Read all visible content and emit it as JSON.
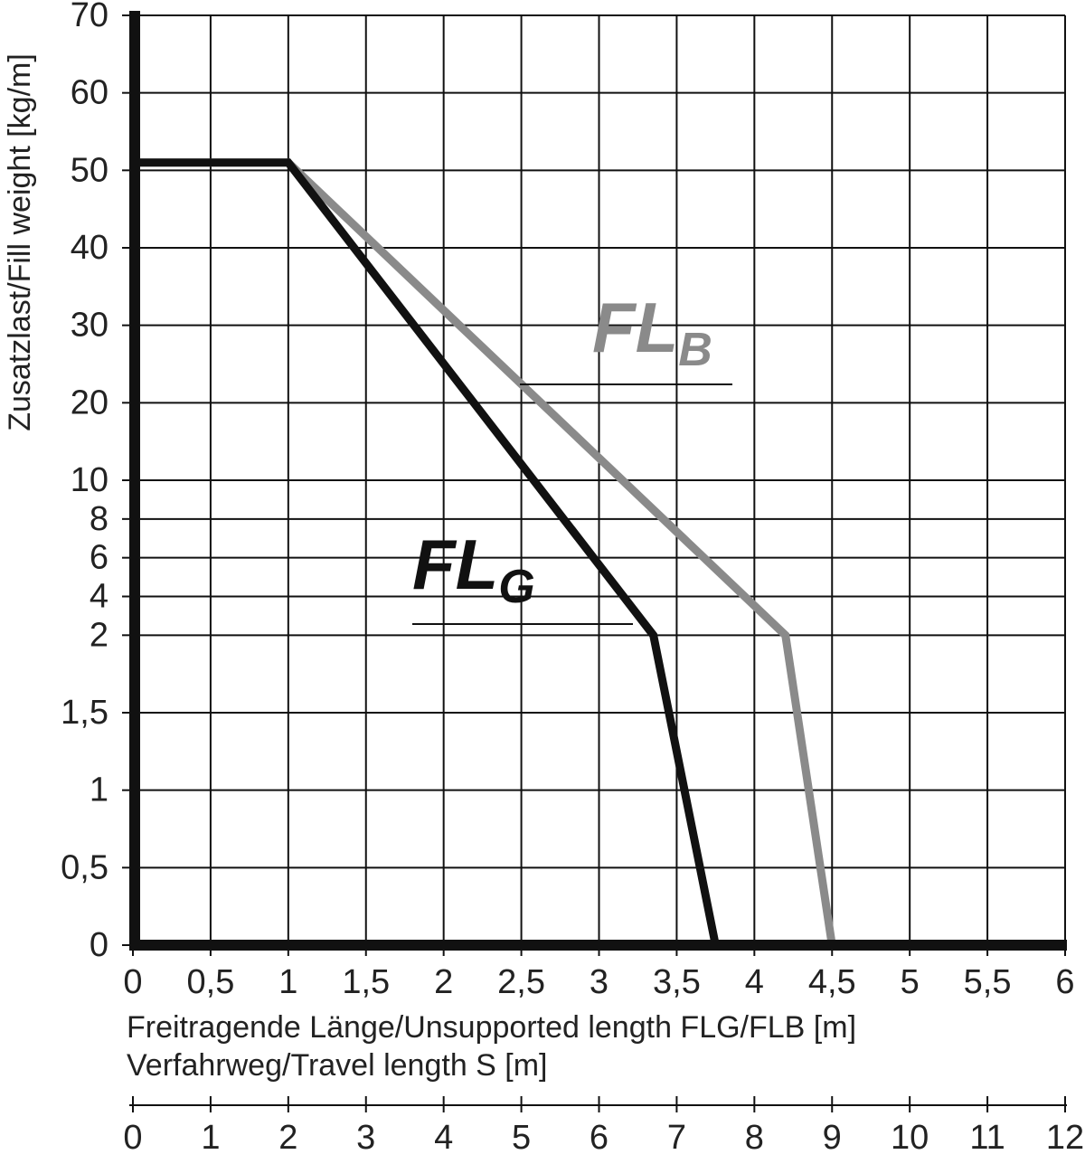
{
  "chart_data": {
    "type": "line",
    "y_label": "Zusatzlast/Fill weight [kg/m]",
    "x_label": "Freitragende Länge/Unsupported length FLG/FLB [m]",
    "x2_label": "Verfahrweg/Travel length S [m]",
    "series": [
      {
        "name": "FL",
        "subscript": "B",
        "color": "#8a8a8a",
        "x": [
          0,
          1,
          4.2,
          4.5
        ],
        "values": [
          51,
          51,
          2,
          0
        ]
      },
      {
        "name": "FL",
        "subscript": "G",
        "color": "#111111",
        "x": [
          0,
          1,
          3.35,
          3.75
        ],
        "values": [
          51,
          51,
          2,
          0
        ]
      }
    ],
    "xlim": [
      0,
      6
    ],
    "xticks": [
      0,
      {
        "value": 0.5,
        "label": "0,5"
      },
      1,
      {
        "value": 1.5,
        "label": "1,5"
      },
      2,
      {
        "value": 2.5,
        "label": "2,5"
      },
      3,
      {
        "value": 3.5,
        "label": "3,5"
      },
      4,
      {
        "value": 4.5,
        "label": "4,5"
      },
      5,
      {
        "value": 5.5,
        "label": "5,5"
      },
      6
    ],
    "x2lim": [
      0,
      12
    ],
    "x2ticks": [
      0,
      1,
      2,
      3,
      4,
      5,
      6,
      7,
      8,
      9,
      10,
      11,
      12
    ],
    "ylim": [
      0,
      70
    ],
    "y_scale": "equal-tick-spacing",
    "yticks": [
      0,
      {
        "value": 0.5,
        "label": "0,5"
      },
      1,
      {
        "value": 1.5,
        "label": "1,5"
      },
      2,
      6,
      10,
      20,
      30,
      40,
      50,
      60,
      70
    ],
    "yminorticks": [
      4,
      8
    ],
    "grid": true
  }
}
